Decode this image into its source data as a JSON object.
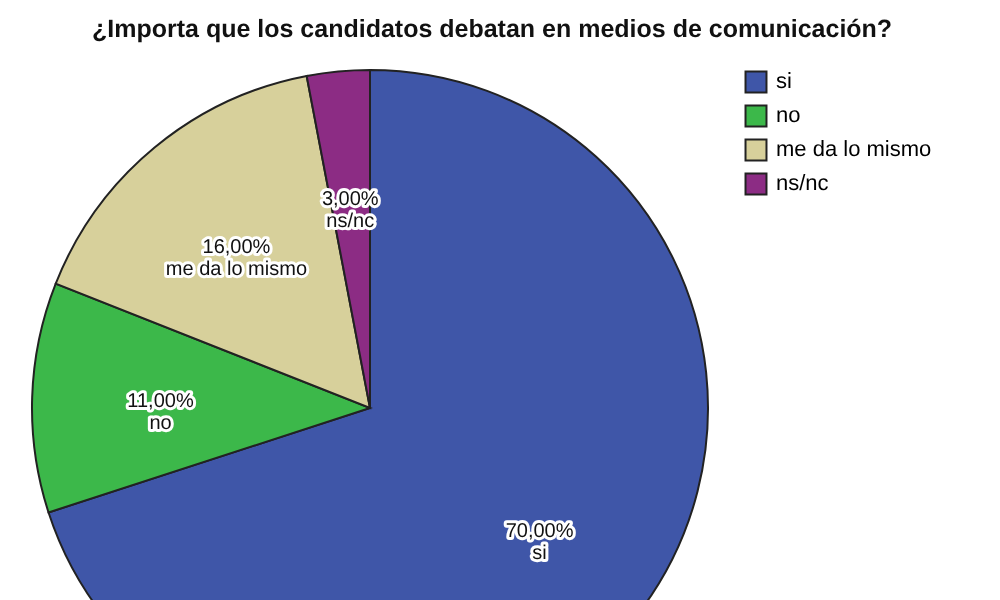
{
  "chart_data": {
    "type": "pie",
    "title": "¿Importa que los candidatos debatan en medios de comunicación?",
    "categories": [
      "si",
      "no",
      "me da lo mismo",
      "ns/nc"
    ],
    "values": [
      70,
      11,
      16,
      3
    ],
    "colors": [
      "#3f56a8",
      "#3cb84a",
      "#d7d09b",
      "#8c2c84"
    ],
    "value_labels": [
      "70,00%",
      "11,00%",
      "16,00%",
      "3,00%"
    ],
    "legend": "top right"
  }
}
